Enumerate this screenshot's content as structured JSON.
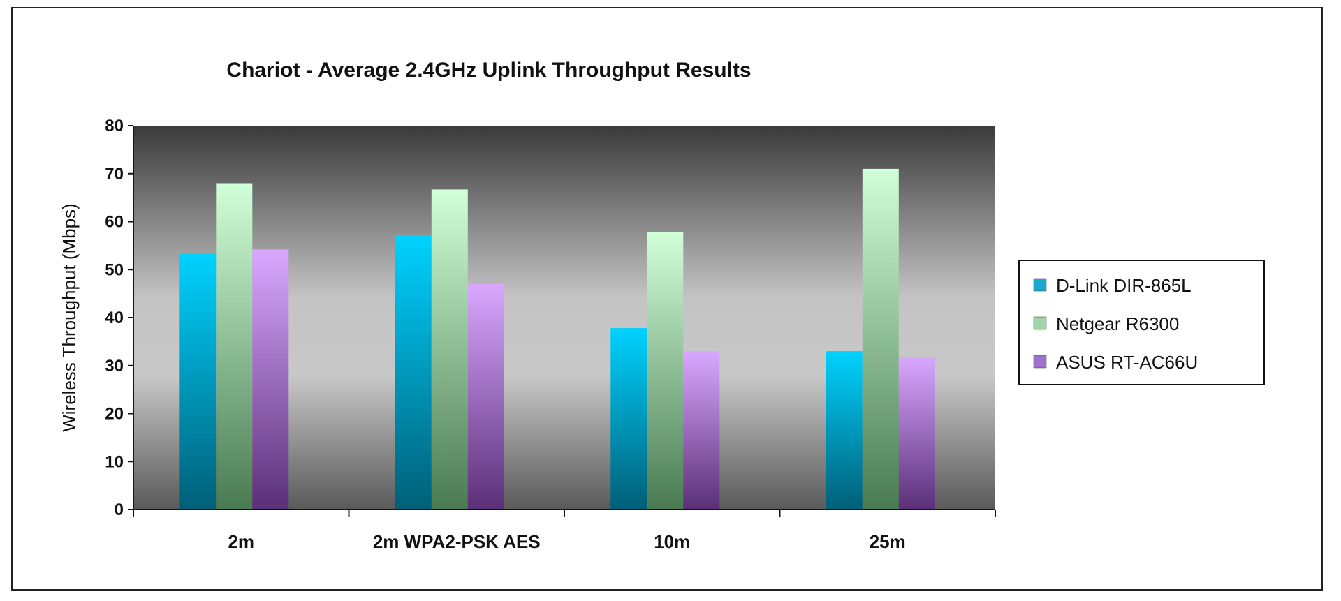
{
  "chart_data": {
    "type": "bar",
    "title": "Chariot - Average 2.4GHz Uplink Throughput Results",
    "ylabel": "Wireless Throughput (Mbps)",
    "xlabel": "",
    "ylim": [
      0,
      80
    ],
    "yticks": [
      0,
      10,
      20,
      30,
      40,
      50,
      60,
      70,
      80
    ],
    "categories": [
      "2m",
      "2m WPA2-PSK AES",
      "10m",
      "25m"
    ],
    "series": [
      {
        "name": "D-Link DIR-865L",
        "values": [
          53.5,
          57.3,
          37.8,
          33.0
        ],
        "color_top": "#00d2ff",
        "color_bottom": "#005f78",
        "legend_color": "#1aa8cc"
      },
      {
        "name": "Netgear R6300",
        "values": [
          68.0,
          66.7,
          57.8,
          71.0
        ],
        "color_top": "#d0ffd8",
        "color_bottom": "#4a7a52",
        "legend_color": "#9ed6a8"
      },
      {
        "name": "ASUS RT-AC66U",
        "values": [
          54.2,
          47.0,
          33.0,
          31.8
        ],
        "color_top": "#d9a8ff",
        "color_bottom": "#5a2f78",
        "legend_color": "#a070cc"
      }
    ],
    "grid": false,
    "legend_position": "right",
    "plot_background": "gradient-gray"
  }
}
